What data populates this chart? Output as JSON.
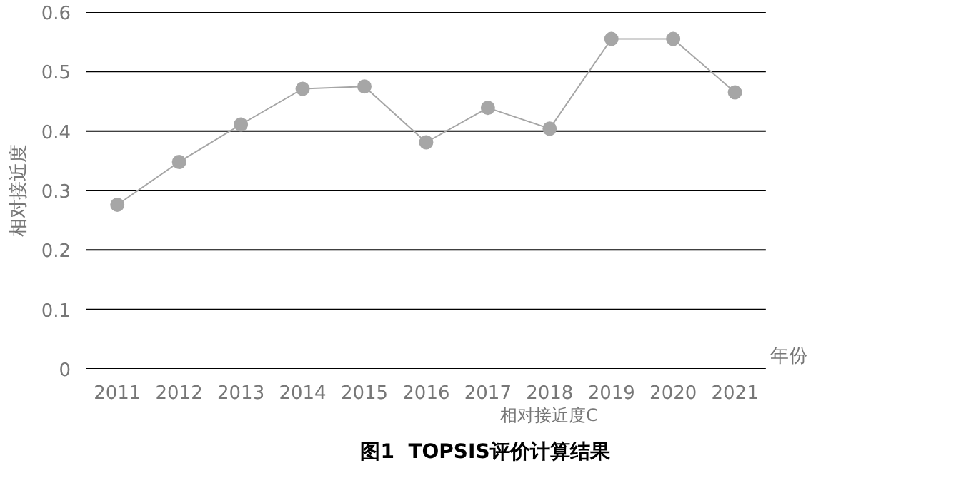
{
  "chart_data": {
    "type": "line",
    "title": "图1  TOPSIS评价计算结果",
    "xlabel": "年份",
    "ylabel": "相对接近度",
    "categories": [
      "2011",
      "2012",
      "2013",
      "2014",
      "2015",
      "2016",
      "2017",
      "2018",
      "2019",
      "2020",
      "2021"
    ],
    "series": [
      {
        "name": "相对接近度C",
        "color": "#a6a6a6",
        "values": [
          0.276,
          0.348,
          0.411,
          0.471,
          0.475,
          0.381,
          0.439,
          0.404,
          0.555,
          0.555,
          0.465
        ]
      }
    ],
    "ylim": [
      0,
      0.6
    ],
    "yticks": [
      0,
      0.1,
      0.2,
      0.3,
      0.4,
      0.5,
      0.6
    ],
    "grid": "y",
    "legend": "bottom",
    "marker": "circle",
    "line_style": "solid"
  }
}
